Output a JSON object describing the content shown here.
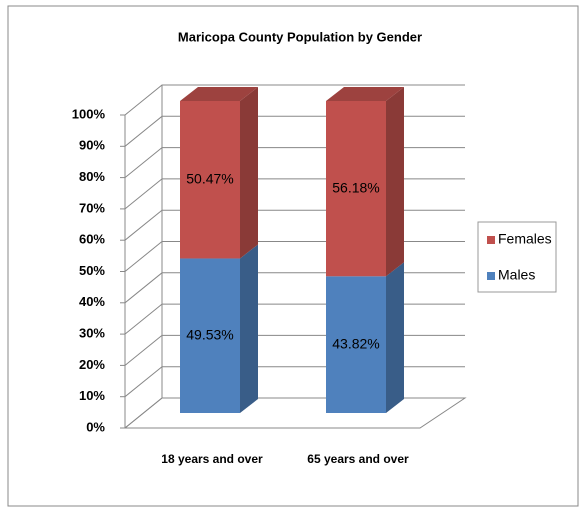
{
  "chart_data": {
    "type": "bar3d_stacked",
    "title": "Maricopa County Population by Gender",
    "categories": [
      "18 years and over",
      "65 years and over"
    ],
    "series": [
      {
        "name": "Males",
        "color": "#4f81bd",
        "values": [
          49.53,
          43.82
        ],
        "value_labels": [
          "49.53%",
          "43.82%"
        ]
      },
      {
        "name": "Females",
        "color": "#c0504d",
        "values": [
          50.47,
          56.18
        ],
        "value_labels": [
          "50.47%",
          "56.18%"
        ]
      }
    ],
    "ylim": [
      0,
      100
    ],
    "yticks": [
      {
        "value": 0,
        "label": "0%"
      },
      {
        "value": 10,
        "label": "10%"
      },
      {
        "value": 20,
        "label": "20%"
      },
      {
        "value": 30,
        "label": "30%"
      },
      {
        "value": 40,
        "label": "40%"
      },
      {
        "value": 50,
        "label": "50%"
      },
      {
        "value": 60,
        "label": "60%"
      },
      {
        "value": 70,
        "label": "70%"
      },
      {
        "value": 80,
        "label": "80%"
      },
      {
        "value": 90,
        "label": "90%"
      },
      {
        "value": 100,
        "label": "100%"
      }
    ],
    "grid": true,
    "legend": "right"
  }
}
